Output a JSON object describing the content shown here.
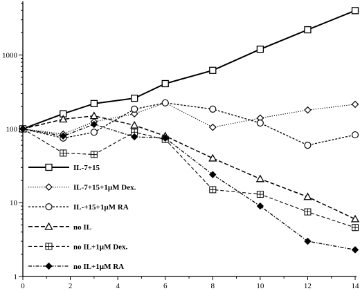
{
  "chart_data": {
    "type": "line",
    "title": "",
    "xlabel": "",
    "ylabel": "",
    "xlim": [
      0,
      14
    ],
    "ylim": [
      1,
      5000
    ],
    "y_scale": "log",
    "x_ticks": [
      0,
      2,
      4,
      6,
      8,
      10,
      12,
      14
    ],
    "x_tick_labels": [
      "0",
      "2",
      "4",
      "6",
      "8",
      "10",
      "12",
      "14"
    ],
    "y_ticks": [
      1,
      10,
      100,
      1000
    ],
    "y_tick_labels": [
      "1",
      "10",
      "100",
      "1000"
    ],
    "grid": false,
    "legend_position": "bottom-left",
    "series": [
      {
        "name": "IL-7+15",
        "marker": "open-square",
        "line_style": "solid-thick",
        "x": [
          0,
          1.7,
          3,
          4.7,
          6,
          8,
          10,
          12,
          14
        ],
        "y": [
          100,
          160,
          220,
          260,
          410,
          620,
          1200,
          2200,
          4000
        ]
      },
      {
        "name": "IL-7+15+1µM  Dex.",
        "marker": "open-diamond",
        "line_style": "dotted",
        "x": [
          0,
          1.7,
          3,
          4.7,
          6,
          8,
          10,
          12,
          14
        ],
        "y": [
          100,
          85,
          125,
          160,
          225,
          105,
          140,
          180,
          215
        ]
      },
      {
        "name": "IL-+15+1µM  RA",
        "marker": "open-circle",
        "line_style": "short-dash",
        "x": [
          0,
          1.7,
          3,
          4.7,
          6,
          8,
          10,
          12,
          14
        ],
        "y": [
          100,
          75,
          90,
          185,
          225,
          185,
          120,
          60,
          83
        ]
      },
      {
        "name": "no  IL",
        "marker": "open-triangle",
        "line_style": "long-dash",
        "x": [
          0,
          1.7,
          3,
          4.7,
          6,
          8,
          10,
          12,
          14
        ],
        "y": [
          100,
          135,
          150,
          112,
          80,
          40,
          21,
          12,
          6
        ]
      },
      {
        "name": "no  IL+1µM  Dex.",
        "marker": "boxed-plus",
        "line_style": "dashed",
        "x": [
          0,
          1.7,
          3,
          4.7,
          6,
          8,
          10,
          12,
          14
        ],
        "y": [
          100,
          47,
          45,
          90,
          72,
          15,
          13,
          7.5,
          4.6
        ]
      },
      {
        "name": "no  IL+1µM  RA",
        "marker": "filled-diamond",
        "line_style": "dash-dot",
        "x": [
          0,
          1.7,
          3,
          4.7,
          6,
          8,
          10,
          12,
          14
        ],
        "y": [
          100,
          80,
          115,
          78,
          75,
          24,
          9,
          3,
          2.3
        ]
      }
    ]
  }
}
